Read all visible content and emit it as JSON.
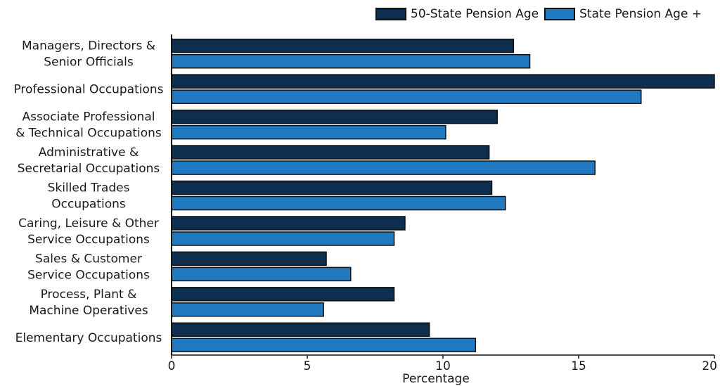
{
  "chart_data": {
    "type": "bar",
    "orientation": "horizontal",
    "title": "",
    "xlabel": "Percentage",
    "ylabel": "",
    "xlim": [
      0,
      20
    ],
    "xticks": [
      0,
      5,
      10,
      15,
      20
    ],
    "grid": false,
    "legend_position": "top-right",
    "categories": [
      [
        "Managers, Directors &",
        "Senior Officials"
      ],
      [
        "Professional Occupations"
      ],
      [
        "Associate Professional",
        "& Technical Occupations"
      ],
      [
        "Administrative &",
        "Secretarial Occupations"
      ],
      [
        "Skilled Trades",
        "Occupations"
      ],
      [
        "Caring, Leisure & Other",
        "Service Occupations"
      ],
      [
        "Sales & Customer",
        "Service Occupations"
      ],
      [
        "Process, Plant &",
        "Machine Operatives"
      ],
      [
        "Elementary Occupations"
      ]
    ],
    "series": [
      {
        "name": "50-State Pension Age",
        "color": "#0d2e4e",
        "values": [
          12.6,
          20.0,
          12.0,
          11.7,
          11.8,
          8.6,
          5.7,
          8.2,
          9.5
        ]
      },
      {
        "name": "State Pension Age +",
        "color": "#1f7ac2",
        "values": [
          13.2,
          17.3,
          10.1,
          15.6,
          12.3,
          8.2,
          6.6,
          5.6,
          11.2
        ]
      }
    ]
  }
}
